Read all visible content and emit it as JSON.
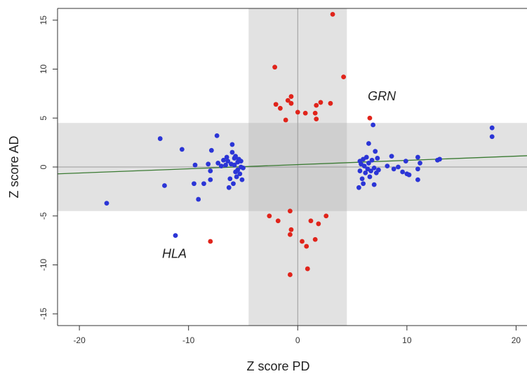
{
  "chart_data": {
    "type": "scatter",
    "xlabel": "Z score PD",
    "ylabel": "Z score AD",
    "xlim": [
      -22,
      21
    ],
    "ylim": [
      -16.2,
      16.2
    ],
    "xticks": [
      -20,
      -10,
      0,
      10,
      20
    ],
    "yticks": [
      -15,
      -10,
      -5,
      0,
      5,
      10,
      15
    ],
    "grid": false,
    "shaded_bands": {
      "vertical_x": [
        -4.5,
        4.5
      ],
      "horizontal_y": [
        -4.5,
        4.5
      ],
      "color": "#e2e2e2",
      "overlap_color": "#cfcfcf"
    },
    "reference_lines": {
      "x": 0,
      "y": 0,
      "color": "#9a9a9a"
    },
    "trend_line": {
      "color": "#3a7a32",
      "points": [
        [
          -22,
          -0.7
        ],
        [
          21,
          1.15
        ]
      ]
    },
    "annotations": [
      {
        "text": "GRN",
        "x": 7.7,
        "y": 6.8
      },
      {
        "text": "HLA",
        "x": -11.3,
        "y": -9.3
      }
    ],
    "series": [
      {
        "color": "#2b35d6",
        "points": [
          [
            -17.5,
            -3.7
          ],
          [
            -12.6,
            2.9
          ],
          [
            -12.2,
            -1.9
          ],
          [
            -10.6,
            1.8
          ],
          [
            -9.5,
            -1.7
          ],
          [
            -9.4,
            0.2
          ],
          [
            -9.1,
            -3.3
          ],
          [
            -8.6,
            -1.7
          ],
          [
            -8.2,
            0.3
          ],
          [
            -8.0,
            -1.3
          ],
          [
            -8.0,
            -0.4
          ],
          [
            -7.9,
            1.7
          ],
          [
            -7.4,
            3.2
          ],
          [
            -7.3,
            0.4
          ],
          [
            -7.0,
            0.1
          ],
          [
            -6.8,
            0.7
          ],
          [
            -6.6,
            0.2
          ],
          [
            -6.5,
            1.0
          ],
          [
            -6.4,
            0.6
          ],
          [
            -6.3,
            -2.1
          ],
          [
            -6.2,
            -1.2
          ],
          [
            -6.1,
            0.3
          ],
          [
            -6.0,
            2.3
          ],
          [
            -6.0,
            1.5
          ],
          [
            -5.9,
            -1.7
          ],
          [
            -5.8,
            0.9
          ],
          [
            -5.8,
            0.2
          ],
          [
            -5.7,
            -0.5
          ],
          [
            -5.7,
            1.1
          ],
          [
            -5.6,
            -1.0
          ],
          [
            -5.5,
            0.5
          ],
          [
            -5.5,
            -0.3
          ],
          [
            -5.4,
            0.8
          ],
          [
            -5.3,
            -0.7
          ],
          [
            -5.2,
            0.0
          ],
          [
            -5.2,
            0.6
          ],
          [
            -5.1,
            -1.3
          ],
          [
            -5.0,
            -0.1
          ],
          [
            -11.2,
            -7.0
          ],
          [
            5.6,
            -2.1
          ],
          [
            5.7,
            -0.4
          ],
          [
            5.8,
            0.3
          ],
          [
            5.9,
            -1.2
          ],
          [
            6.0,
            0.8
          ],
          [
            6.0,
            -1.7
          ],
          [
            6.1,
            0.1
          ],
          [
            6.2,
            -0.6
          ],
          [
            6.3,
            1.0
          ],
          [
            6.4,
            -0.2
          ],
          [
            6.5,
            2.4
          ],
          [
            6.5,
            0.4
          ],
          [
            6.6,
            -1.0
          ],
          [
            6.7,
            -0.4
          ],
          [
            6.8,
            0.7
          ],
          [
            6.9,
            4.3
          ],
          [
            7.0,
            -0.1
          ],
          [
            7.1,
            1.6
          ],
          [
            7.2,
            -0.6
          ],
          [
            7.3,
            0.9
          ],
          [
            7.0,
            -1.8
          ],
          [
            7.4,
            -0.3
          ],
          [
            8.2,
            0.1
          ],
          [
            8.6,
            1.1
          ],
          [
            8.8,
            -0.2
          ],
          [
            9.2,
            0.0
          ],
          [
            9.6,
            -0.5
          ],
          [
            9.9,
            0.6
          ],
          [
            10.2,
            -0.8
          ],
          [
            11.0,
            1.0
          ],
          [
            11.0,
            -1.3
          ],
          [
            11.2,
            0.4
          ],
          [
            11.0,
            -0.2
          ],
          [
            13.0,
            0.8
          ],
          [
            12.8,
            0.7
          ],
          [
            17.8,
            4.0
          ],
          [
            17.8,
            3.1
          ],
          [
            10.0,
            -0.7
          ],
          [
            5.7,
            0.6
          ]
        ]
      },
      {
        "color": "#e0241b",
        "points": [
          [
            3.2,
            15.6
          ],
          [
            -2.1,
            10.2
          ],
          [
            4.2,
            9.2
          ],
          [
            -0.6,
            7.2
          ],
          [
            -0.9,
            6.8
          ],
          [
            2.1,
            6.6
          ],
          [
            3.0,
            6.5
          ],
          [
            -0.6,
            6.5
          ],
          [
            -2.0,
            6.4
          ],
          [
            -1.6,
            6.0
          ],
          [
            1.7,
            6.3
          ],
          [
            0.0,
            5.6
          ],
          [
            1.6,
            5.5
          ],
          [
            0.7,
            5.5
          ],
          [
            1.7,
            4.9
          ],
          [
            -1.1,
            4.8
          ],
          [
            6.6,
            5.0
          ],
          [
            -0.7,
            -4.5
          ],
          [
            -2.6,
            -5.0
          ],
          [
            2.6,
            -5.0
          ],
          [
            -1.8,
            -5.5
          ],
          [
            1.2,
            -5.5
          ],
          [
            1.9,
            -5.8
          ],
          [
            -0.6,
            -6.4
          ],
          [
            -0.7,
            -6.9
          ],
          [
            0.4,
            -7.6
          ],
          [
            1.6,
            -7.4
          ],
          [
            0.8,
            -8.1
          ],
          [
            0.9,
            -10.4
          ],
          [
            -0.7,
            -11.0
          ],
          [
            -8.0,
            -7.6
          ]
        ]
      }
    ]
  }
}
